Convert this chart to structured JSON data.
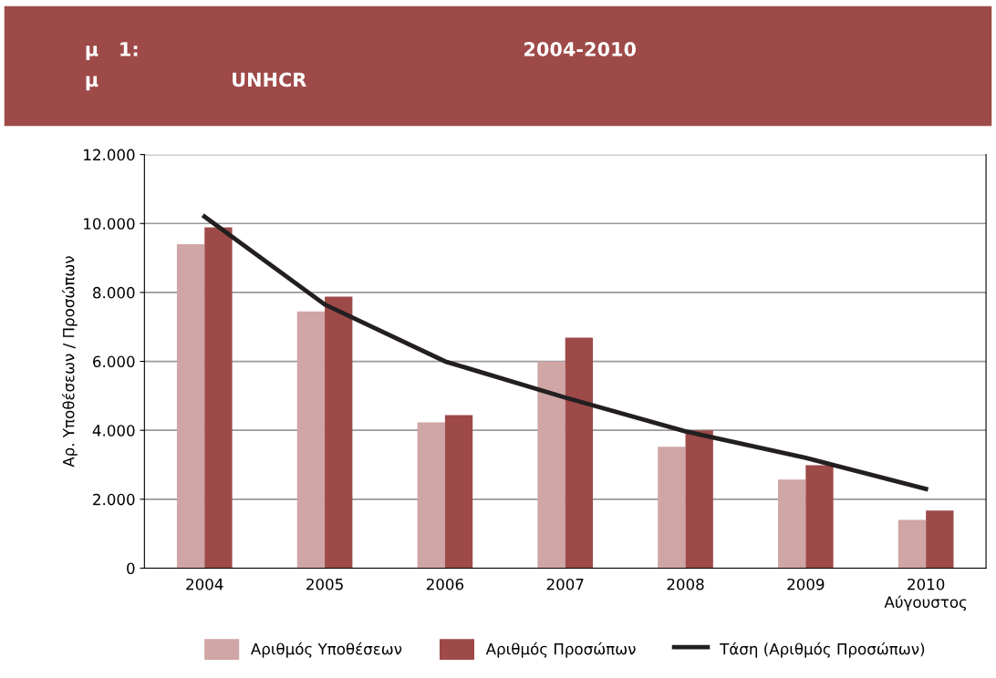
{
  "chart_data": {
    "type": "bar",
    "title": "μ   1:                                                          2004-2010",
    "subtitle": "μ                    UNHCR",
    "ylabel": "Αρ. Υποθέσεων / Προσώπων",
    "categories": [
      "2004",
      "2005",
      "2006",
      "2007",
      "2008",
      "2009",
      "2010\nΑύγουστος"
    ],
    "series": [
      {
        "name": "Αριθμός Υποθέσεων",
        "color": "#cfa5a5",
        "values": [
          9400,
          7450,
          4230,
          6000,
          3520,
          2570,
          1400
        ]
      },
      {
        "name": "Αριθμός Προσώπων",
        "color": "#9e4a49",
        "values": [
          9890,
          7880,
          4440,
          6690,
          4000,
          2990,
          1670
        ]
      },
      {
        "name": "Τάση (Αριθμός Προσώπων)",
        "type": "line",
        "color": "#231f20",
        "values": [
          10200,
          7650,
          6000,
          4950,
          3970,
          3200,
          2300
        ]
      }
    ],
    "ylim": [
      0,
      12000
    ],
    "yticks": [
      {
        "value": 0,
        "label": "0"
      },
      {
        "value": 2000,
        "label": "2.000"
      },
      {
        "value": 4000,
        "label": "4.000"
      },
      {
        "value": 6000,
        "label": "6.000"
      },
      {
        "value": 8000,
        "label": "8.000"
      },
      {
        "value": 10000,
        "label": "10.000"
      },
      {
        "value": 12000,
        "label": "12.000"
      }
    ],
    "grid": "y",
    "legend": "bottom"
  }
}
